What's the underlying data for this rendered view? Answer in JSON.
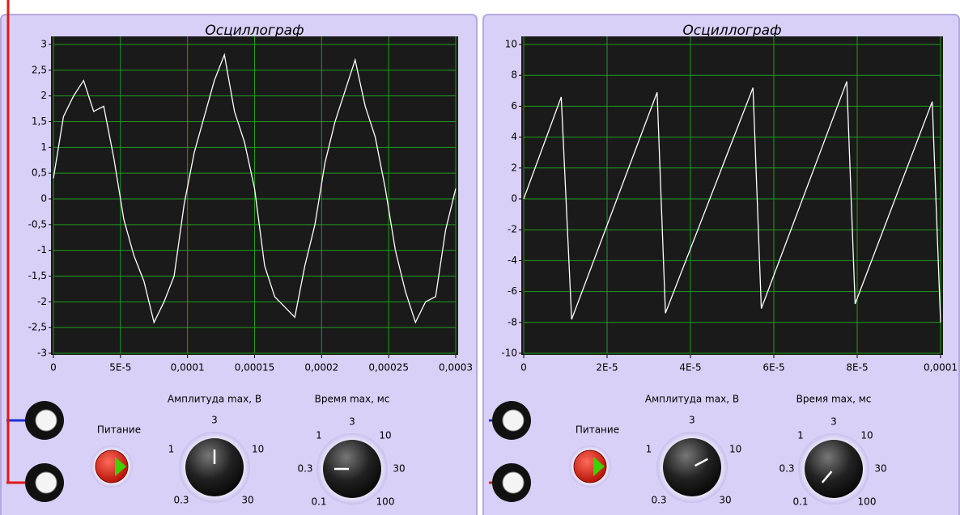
{
  "chart_data": [
    {
      "type": "line",
      "title": "Осциллограф",
      "x": [
        0,
        7.5e-06,
        1.5e-05,
        2.25e-05,
        3e-05,
        3.75e-05,
        4.5e-05,
        5.25e-05,
        6e-05,
        6.75e-05,
        7.5e-05,
        8.25e-05,
        9e-05,
        9.75e-05,
        0.000105,
        0.0001125,
        0.00012,
        0.0001275,
        0.000135,
        0.0001425,
        0.00015,
        0.0001575,
        0.000165,
        0.0001725,
        0.00018,
        0.0001875,
        0.000195,
        0.0002025,
        0.00021,
        0.0002175,
        0.000225,
        0.0002325,
        0.00024,
        0.0002475,
        0.000255,
        0.0002625,
        0.00027,
        0.0002775,
        0.000285,
        0.0002925,
        0.0003
      ],
      "series": [
        {
          "color": "#ffffff",
          "values": [
            0.4,
            1.6,
            2.0,
            2.3,
            1.7,
            1.8,
            0.8,
            -0.4,
            -1.1,
            -1.6,
            -2.4,
            -2.0,
            -1.5,
            -0.1,
            0.9,
            1.6,
            2.3,
            2.8,
            1.7,
            1.1,
            0.2,
            -1.3,
            -1.9,
            -2.1,
            -2.3,
            -1.3,
            -0.5,
            0.7,
            1.5,
            2.1,
            2.7,
            1.8,
            1.2,
            0.2,
            -1.0,
            -1.8,
            -2.4,
            -2.0,
            -1.9,
            -0.6,
            0.2
          ]
        }
      ],
      "xlim": [
        0,
        0.0003
      ],
      "xticks": [
        0,
        {
          "value": 5e-05,
          "label": "5E-5"
        },
        {
          "value": 0.0001,
          "label": "0,0001"
        },
        {
          "value": 0.00015,
          "label": "0,00015"
        },
        {
          "value": 0.0002,
          "label": "0,0002"
        },
        {
          "value": 0.00025,
          "label": "0,00025"
        },
        {
          "value": 0.0003,
          "label": "0,0003"
        }
      ],
      "ylim": [
        -3,
        3
      ],
      "yticks": [
        -3,
        {
          "value": -2.5,
          "label": "-2,5"
        },
        -2,
        {
          "value": -1.5,
          "label": "-1,5"
        },
        -1,
        {
          "value": -0.5,
          "label": "-0,5"
        },
        0,
        {
          "value": 0.5,
          "label": "0,5"
        },
        1,
        {
          "value": 1.5,
          "label": "1,5"
        },
        2,
        {
          "value": 2.5,
          "label": "2,5"
        },
        3
      ],
      "grid": true,
      "grid_color": "#1f9e1f",
      "background": "#1a1a1a"
    },
    {
      "type": "line",
      "title": "Осциллограф",
      "x": [
        0,
        9e-06,
        1.15e-05,
        3.2e-05,
        3.4e-05,
        5.5e-05,
        5.7e-05,
        7.75e-05,
        7.95e-05,
        9.8e-05,
        0.0001
      ],
      "series": [
        {
          "color": "#ffffff",
          "values": [
            0,
            6.6,
            -7.8,
            6.9,
            -7.4,
            7.2,
            -7.1,
            7.6,
            -6.8,
            6.3,
            -8
          ]
        }
      ],
      "xlim": [
        0,
        0.0001
      ],
      "xticks": [
        0,
        {
          "value": 2e-05,
          "label": "2E-5"
        },
        {
          "value": 4e-05,
          "label": "4E-5"
        },
        {
          "value": 6e-05,
          "label": "6E-5"
        },
        {
          "value": 8e-05,
          "label": "8E-5"
        },
        {
          "value": 0.0001,
          "label": "0,0001"
        }
      ],
      "ylim": [
        -10,
        10
      ],
      "yticks": [
        -10,
        -8,
        -6,
        -4,
        -2,
        0,
        2,
        4,
        6,
        8,
        10
      ],
      "grid": true,
      "grid_color": "#1f9e1f",
      "background": "#1a1a1a"
    }
  ],
  "panels": [
    {
      "power": "Питание",
      "amplitude": {
        "title": "Амплитуда max, В",
        "scale": [
          "0.3",
          "1",
          "3",
          "10",
          "30"
        ]
      },
      "time": {
        "title": "Время max, мс",
        "scale": [
          "0.1",
          "0.3",
          "1",
          "3",
          "10",
          "30",
          "100"
        ]
      }
    },
    {
      "power": "Питание",
      "amplitude": {
        "title": "Амплитуда max, В",
        "scale": [
          "0.3",
          "1",
          "3",
          "10",
          "30"
        ]
      },
      "time": {
        "title": "Время max, мс",
        "scale": [
          "0.1",
          "0.3",
          "1",
          "3",
          "10",
          "30",
          "100"
        ]
      }
    }
  ]
}
